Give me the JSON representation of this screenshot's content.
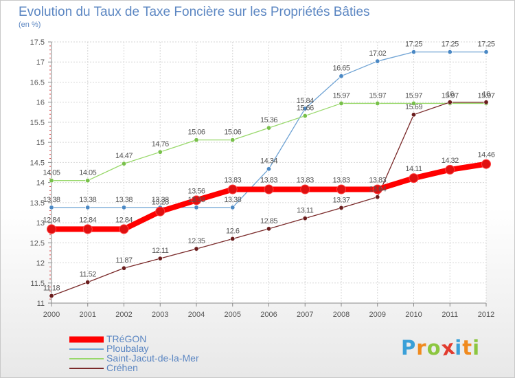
{
  "title": "Evolution du Taux de Taxe Foncière sur les Propriétés Bâties",
  "unit": "(en %)",
  "logo": {
    "text": "Proxiti",
    "letters": [
      "P",
      "r",
      "o",
      "x",
      "i",
      "t",
      "i"
    ],
    "colors": [
      "#3aa0d8",
      "#f08a1e",
      "#8cc63f",
      "#e23b2e",
      "#3aa0d8",
      "#f08a1e",
      "#8cc63f"
    ]
  },
  "chart_data": {
    "type": "line",
    "title": "Evolution du Taux de Taxe Foncière sur les Propriétés Bâties",
    "ylabel": "(en %)",
    "xlabel": "",
    "x": [
      "2000",
      "2001",
      "2002",
      "2003",
      "2004",
      "2005",
      "2006",
      "2007",
      "2008",
      "2009",
      "2010",
      "2011",
      "2012"
    ],
    "ylim": [
      11,
      17.5
    ],
    "yticks": [
      "11",
      "11.5",
      "12",
      "12.5",
      "13",
      "13.5",
      "14",
      "14.5",
      "15",
      "15.5",
      "16",
      "16.5",
      "17",
      "17.5"
    ],
    "grid": true,
    "legend_position": "bottom-left",
    "series": [
      {
        "name": "TRéGON",
        "color": "#ff0000",
        "marker_color": "#e01010",
        "thick": true,
        "values": [
          12.84,
          12.84,
          12.84,
          13.28,
          13.56,
          13.83,
          13.83,
          13.83,
          13.83,
          13.83,
          14.11,
          14.32,
          14.46
        ],
        "labels": [
          "12.84",
          "12.84",
          "12.84",
          "13.28",
          "13.56",
          "13.83",
          "13.83",
          "13.83",
          "13.83",
          "13.83",
          "14.11",
          "14.32",
          "14.46"
        ]
      },
      {
        "name": "Ploubalay",
        "color": "#6fa3d4",
        "marker_color": "#4a88c4",
        "thick": false,
        "values": [
          13.38,
          13.38,
          13.38,
          13.38,
          13.38,
          13.38,
          14.34,
          15.84,
          16.65,
          17.02,
          17.25,
          17.25,
          17.25
        ],
        "labels": [
          "13.38",
          "13.38",
          "13.38",
          "13.38",
          "13.38",
          "13.38",
          "14.34",
          "15.84",
          "16.65",
          "17.02",
          "17.25",
          "17.25",
          "17.25"
        ]
      },
      {
        "name": "Saint-Jacut-de-la-Mer",
        "color": "#98d86a",
        "marker_color": "#78c04a",
        "thick": false,
        "values": [
          14.05,
          14.05,
          14.47,
          14.76,
          15.06,
          15.06,
          15.36,
          15.66,
          15.97,
          15.97,
          15.97,
          15.97,
          15.97
        ],
        "labels": [
          "14.05",
          "14.05",
          "14.47",
          "14.76",
          "15.06",
          "15.06",
          "15.36",
          "15.66",
          "15.97",
          "15.97",
          "15.97",
          "15.97",
          "15.97"
        ]
      },
      {
        "name": "Créhen",
        "color": "#7a2a2a",
        "marker_color": "#6a1c1c",
        "thick": false,
        "values": [
          11.18,
          11.52,
          11.87,
          12.11,
          12.35,
          12.6,
          12.85,
          13.11,
          13.37,
          13.64,
          15.69,
          16,
          16
        ],
        "labels": [
          "11.18",
          "11.52",
          "11.87",
          "12.11",
          "12.35",
          "12.6",
          "12.85",
          "13.11",
          "13.37",
          "13.64",
          "15.69",
          "16",
          "16"
        ]
      }
    ]
  }
}
